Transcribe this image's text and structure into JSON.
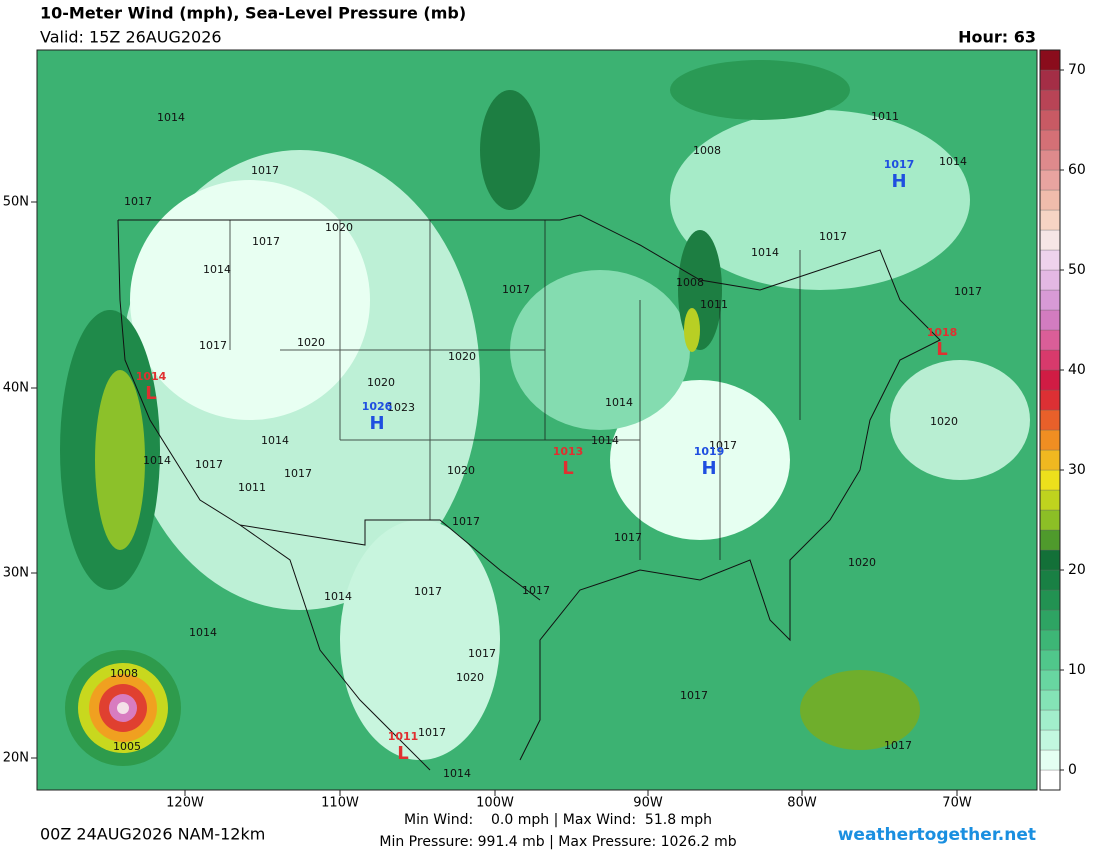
{
  "header": {
    "title": "10-Meter Wind (mph), Sea-Level Pressure (mb)",
    "valid": "Valid: 15Z 26AUG2026",
    "hour": "Hour: 63"
  },
  "colorbar": {
    "ticks": [
      0,
      10,
      20,
      30,
      40,
      50,
      60,
      70
    ],
    "colors": [
      "#ffffff",
      "#e4fff2",
      "#c2f7df",
      "#a2eecb",
      "#84e3b6",
      "#68d6a1",
      "#50c78b",
      "#3db676",
      "#2ea463",
      "#229252",
      "#198044",
      "#137038",
      "#4f9a2c",
      "#8cbf26",
      "#bfd31e",
      "#ece01c",
      "#f0b820",
      "#ef8e22",
      "#e8602a",
      "#dc3034",
      "#d01c44",
      "#d83a6c",
      "#da5e98",
      "#d27cc0",
      "#d89ad6",
      "#e4b8e4",
      "#eed2ec",
      "#f6e6e6",
      "#f6d4c4",
      "#f0bcac",
      "#e8a4a0",
      "#de8a8c",
      "#d47076",
      "#c85a64",
      "#b84456",
      "#a42e46",
      "#8a0c1c"
    ]
  },
  "map": {
    "lat_labels": [
      "50N",
      "40N",
      "30N",
      "20N"
    ],
    "lon_labels": [
      "120W",
      "110W",
      "100W",
      "90W",
      "80W",
      "70W"
    ],
    "centers": [
      {
        "kind": "L",
        "value": 1014
      },
      {
        "kind": "H",
        "value": 1026
      },
      {
        "kind": "L",
        "value": 1013
      },
      {
        "kind": "H",
        "value": 1019
      },
      {
        "kind": "H",
        "value": 1017
      },
      {
        "kind": "L",
        "value": 1018
      },
      {
        "kind": "L",
        "value": 1011
      }
    ],
    "isobar_labels": [
      1014,
      1017,
      1017,
      1020,
      1017,
      1014,
      1017,
      1017,
      1020,
      1020,
      1020,
      1023,
      1014,
      1014,
      1017,
      1014,
      1014,
      1017,
      1017,
      1011,
      1020,
      1017,
      1017,
      1017,
      1020,
      1014,
      1017,
      1014,
      1017,
      1020,
      1017,
      1017,
      1017,
      1014,
      1008,
      1005,
      1011,
      1008,
      1014,
      1014,
      1017,
      1017,
      1008,
      1011,
      1020
    ]
  },
  "footer": {
    "run": "00Z 24AUG2026 NAM-12km",
    "wind": "Min Wind:    0.0 mph | Max Wind:  51.8 mph",
    "pressure": "Min Pressure: 991.4 mb | Max Pressure: 1026.2 mb",
    "site": "weathertogether.net"
  }
}
